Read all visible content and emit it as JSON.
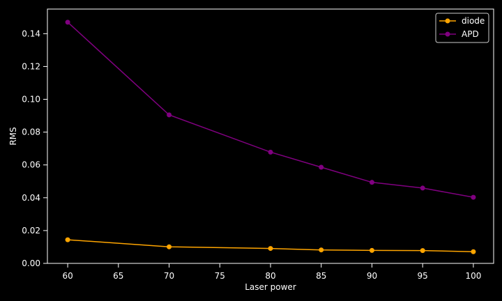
{
  "chart_data": {
    "type": "line",
    "title": "",
    "xlabel": "Laser power",
    "ylabel": "RMS",
    "x": [
      60,
      70,
      80,
      85,
      90,
      95,
      100
    ],
    "xlim": [
      58,
      102
    ],
    "ylim": [
      0,
      0.155
    ],
    "xticks": [
      60,
      65,
      70,
      75,
      80,
      85,
      90,
      95,
      100
    ],
    "yticks": [
      0.0,
      0.02,
      0.04,
      0.06,
      0.08,
      0.1,
      0.12,
      0.14
    ],
    "xtick_labels": [
      "60",
      "65",
      "70",
      "75",
      "80",
      "85",
      "90",
      "95",
      "100"
    ],
    "ytick_labels": [
      "0.00",
      "0.02",
      "0.04",
      "0.06",
      "0.08",
      "0.10",
      "0.12",
      "0.14"
    ],
    "grid": false,
    "legend_position": "top-right",
    "background": "#000000",
    "foreground": "#ffffff",
    "series": [
      {
        "name": "diode",
        "color": "#ffa500",
        "values": [
          0.0144,
          0.0101,
          0.0091,
          0.0082,
          0.0079,
          0.0078,
          0.0071
        ]
      },
      {
        "name": "APD",
        "color": "#800080",
        "values": [
          0.147,
          0.0905,
          0.0678,
          0.0586,
          0.0494,
          0.0459,
          0.0403
        ]
      }
    ]
  }
}
